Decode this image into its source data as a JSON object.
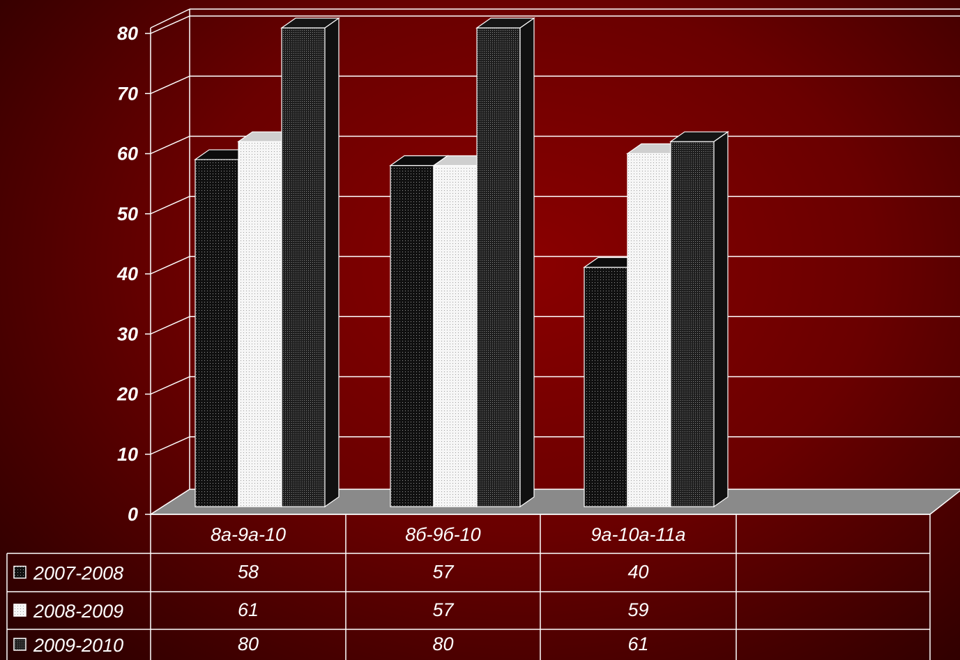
{
  "chart_data": {
    "type": "bar",
    "categories": [
      "8а-9а-10",
      "8б-9б-10",
      "9а-10а-11а"
    ],
    "series": [
      {
        "name": "2007-2008",
        "values": [
          58,
          57,
          40
        ]
      },
      {
        "name": "2008-2009",
        "values": [
          61,
          57,
          59
        ]
      },
      {
        "name": "2009-2010",
        "values": [
          80,
          80,
          61
        ]
      }
    ],
    "ylim": [
      0,
      80
    ],
    "yticks": [
      "0",
      "10",
      "20",
      "30",
      "40",
      "50",
      "60",
      "70",
      "80"
    ],
    "grid": true,
    "legend": "bottom-left data table",
    "style": "3d-column with data table"
  },
  "colors": {
    "background": "#7a0000",
    "series_fill": [
      "#111111",
      "#f4f4f4",
      "#262626"
    ],
    "floor": "#8a8a8a",
    "lines": "#ffffff"
  },
  "table_cells": [
    [
      "58",
      "57",
      "40"
    ],
    [
      "61",
      "57",
      "59"
    ],
    [
      "80",
      "80",
      "61"
    ]
  ]
}
